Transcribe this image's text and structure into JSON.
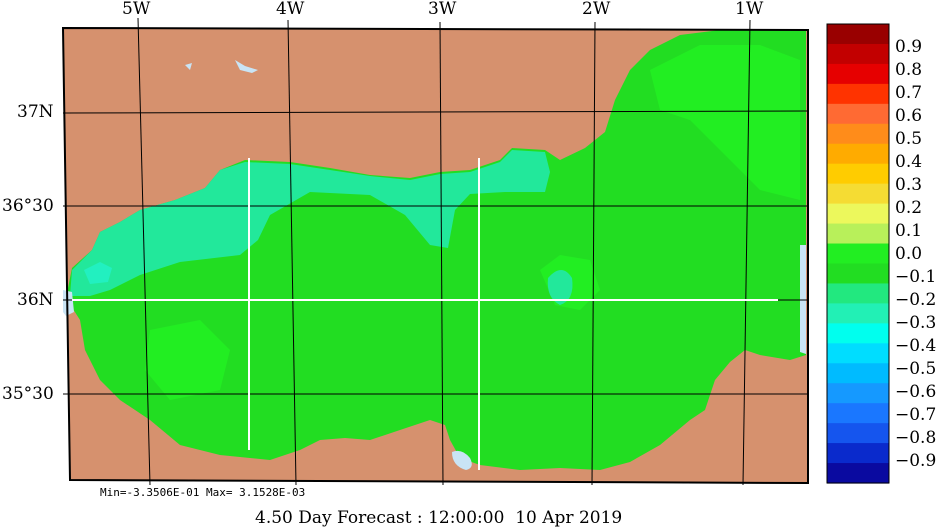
{
  "map": {
    "lon_labels": [
      "5W",
      "4W",
      "3W",
      "2W",
      "1W"
    ],
    "lat_labels": [
      "37N",
      "36°30",
      "36N",
      "35°30"
    ]
  },
  "colorbar": {
    "labels": [
      "0.9",
      "0.8",
      "0.7",
      "0.6",
      "0.5",
      "0.4",
      "0.3",
      "0.2",
      "0.1",
      "0.0",
      "−0.1",
      "−0.2",
      "−0.3",
      "−0.4",
      "−0.5",
      "−0.6",
      "−0.7",
      "−0.8",
      "−0.9"
    ],
    "colors": [
      "#990000",
      "#c20000",
      "#e60000",
      "#ff3300",
      "#ff6a33",
      "#ff8c1a",
      "#ffab00",
      "#ffcc00",
      "#f5dc33",
      "#ecf85c",
      "#b8f05a",
      "#22ee22",
      "#22dd22",
      "#22e87f",
      "#22f0b5",
      "#00ffee",
      "#00ddff",
      "#00bbff",
      "#1599ff",
      "#1a77ff",
      "#1555ee",
      "#0a2acc",
      "#0a0aa0"
    ]
  },
  "stats": {
    "text": "Min=-3.3506E-01   Max= 3.1528E-03"
  },
  "footer": {
    "text": "4.50 Day Forecast : 12:00:00  10 Apr 2019"
  },
  "colors": {
    "land": "#d6916e",
    "sea_main": "#22dd22",
    "sea_light": "#22ee22",
    "sea_teal": "#22e89b",
    "sea_cyan": "#22f0c0",
    "water_outside": "#c9e4f5",
    "transect": "#ffffff"
  }
}
